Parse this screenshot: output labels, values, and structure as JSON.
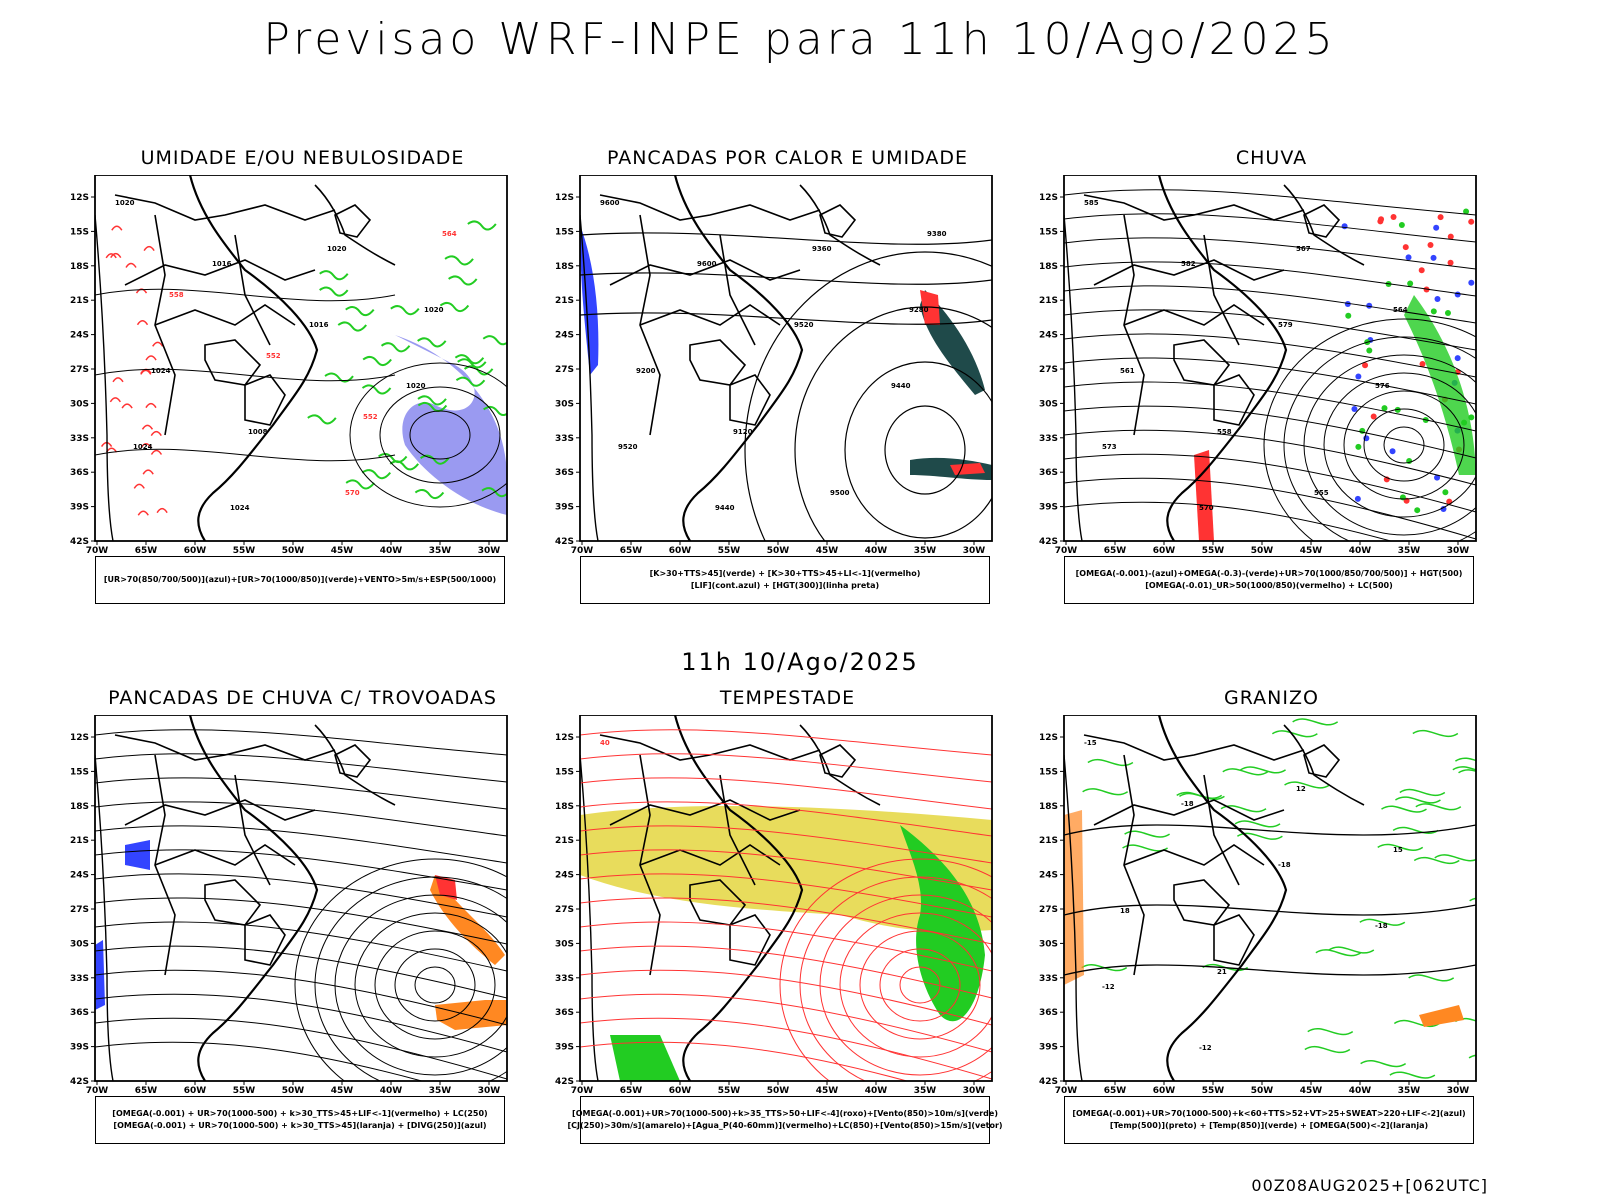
{
  "title": "Previsao WRF-INPE  para 11h 10/Ago/2025",
  "mid_title": "11h 10/Ago/2025",
  "footer": "00Z08AUG2025+[062UTC]",
  "lat_labels": [
    "12S",
    "15S",
    "18S",
    "21S",
    "24S",
    "27S",
    "30S",
    "33S",
    "36S",
    "39S",
    "42S"
  ],
  "lon_labels": [
    "70W",
    "65W",
    "60W",
    "55W",
    "50W",
    "45W",
    "40W",
    "35W",
    "30W"
  ],
  "colors": {
    "green": "#22cc22",
    "red": "#ff3333",
    "blue": "#3344ff",
    "lavender": "#8888ee",
    "orange": "#ff8822",
    "yellow": "#e6d84a",
    "darkteal": "#1f4a4a"
  },
  "panels": [
    {
      "title": "UMIDADE E/OU NEBULOSIDADE",
      "legend": [
        "[UR>70(850/700/500)](azul)+[UR>70(1000/850)](verde)+VENTO>5m/s+ESP(500/1000)"
      ],
      "labels": [
        "1020",
        "1016",
        "1016",
        "1020",
        "1024",
        "1024",
        "1020",
        "1020",
        "1024",
        "1008",
        "570",
        "564",
        "558",
        "552",
        "552"
      ]
    },
    {
      "title": "PANCADAS POR CALOR E UMIDADE",
      "legend": [
        "[K>30+TTS>45](verde) + [K>30+TTS>45+LI<-1](vermelho)",
        "[LIF](cont.azul) + [HGT(300)](linha preta)"
      ],
      "labels": [
        "9600",
        "9600",
        "9520",
        "9440",
        "9520",
        "9440",
        "9360",
        "9280",
        "9200",
        "9120",
        "9500",
        "9380"
      ]
    },
    {
      "title": "CHUVA",
      "legend": [
        "[OMEGA(-0.001)-(azul)+OMEGA(-0.3)-(verde)+UR>70(1000/850/700/500)] + HGT(500)",
        "[OMEGA(-0.01)_UR>50(1000/850)(vermelho) + LC(500)"
      ],
      "labels": [
        "585",
        "582",
        "579",
        "576",
        "573",
        "570",
        "567",
        "564",
        "561",
        "558",
        "555"
      ]
    },
    {
      "title": "PANCADAS DE CHUVA C/ TROVOADAS",
      "legend": [
        "[OMEGA(-0.001) + UR>70(1000-500) + k>30_TTS>45+LIF<-1](vermelho) + LC(250)",
        "[OMEGA(-0.001) + UR>70(1000-500) + k>30_TTS>45](laranja) + [DIVG(250)](azul)"
      ],
      "labels": []
    },
    {
      "title": "TEMPESTADE",
      "legend": [
        "[OMEGA(-0.001)+UR>70(1000-500)+k>35_TTS>50+LIF<-4](roxo)+[Vento(850)>10m/s](verde)",
        "[CJ(250)>30m/s](amarelo)+[Agua_P(40-60mm)](vermelho)+LC(850)+[Vento(850)>15m/s](vetor)"
      ],
      "labels": [
        "40"
      ]
    },
    {
      "title": "GRANIZO",
      "legend": [
        "[OMEGA(-0.001)+UR>70(1000-500)+k<60+TTS>52+VT>25+SWEAT>220+LIF<-2](azul)",
        "[Temp(500)](preto) + [Temp(850)](verde) + [OMEGA(500)<-2](laranja)"
      ],
      "labels": [
        "-15",
        "-18",
        "-18",
        "-18",
        "-12",
        "-12",
        "12",
        "15",
        "18",
        "21"
      ]
    }
  ]
}
